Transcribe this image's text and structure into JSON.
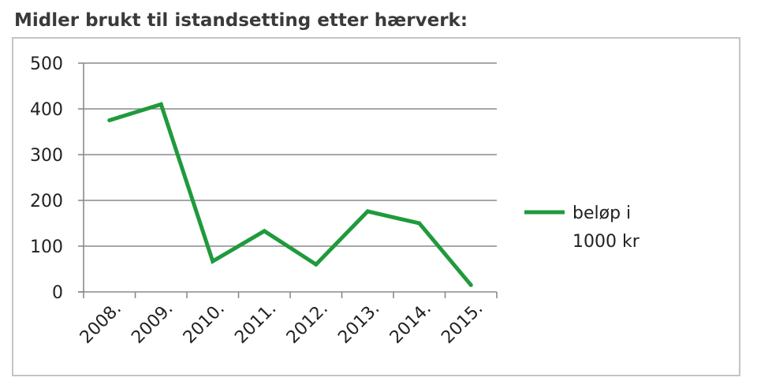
{
  "title": "Midler brukt til istandsetting etter hærverk:",
  "colors": {
    "line": "#1f9a3c",
    "grid": "#8a8a8a",
    "axis": "#8a8a8a",
    "frame": "#c4c4c4",
    "title": "#3a3a3a"
  },
  "chart_data": {
    "type": "line",
    "title": "",
    "xlabel": "",
    "ylabel": "",
    "categories": [
      "2008.",
      "2009.",
      "2010.",
      "2011.",
      "2012.",
      "2013.",
      "2014.",
      "2015."
    ],
    "series": [
      {
        "name": "beløp i 1000 kr",
        "values": [
          375,
          410,
          67,
          133,
          60,
          176,
          150,
          15
        ]
      }
    ],
    "yticks": [
      "0",
      "100",
      "200",
      "300",
      "400",
      "500"
    ],
    "ylim": [
      0,
      500
    ],
    "grid": true,
    "legend_position": "right",
    "legend_lines": [
      "beløp i",
      "1000 kr"
    ]
  }
}
